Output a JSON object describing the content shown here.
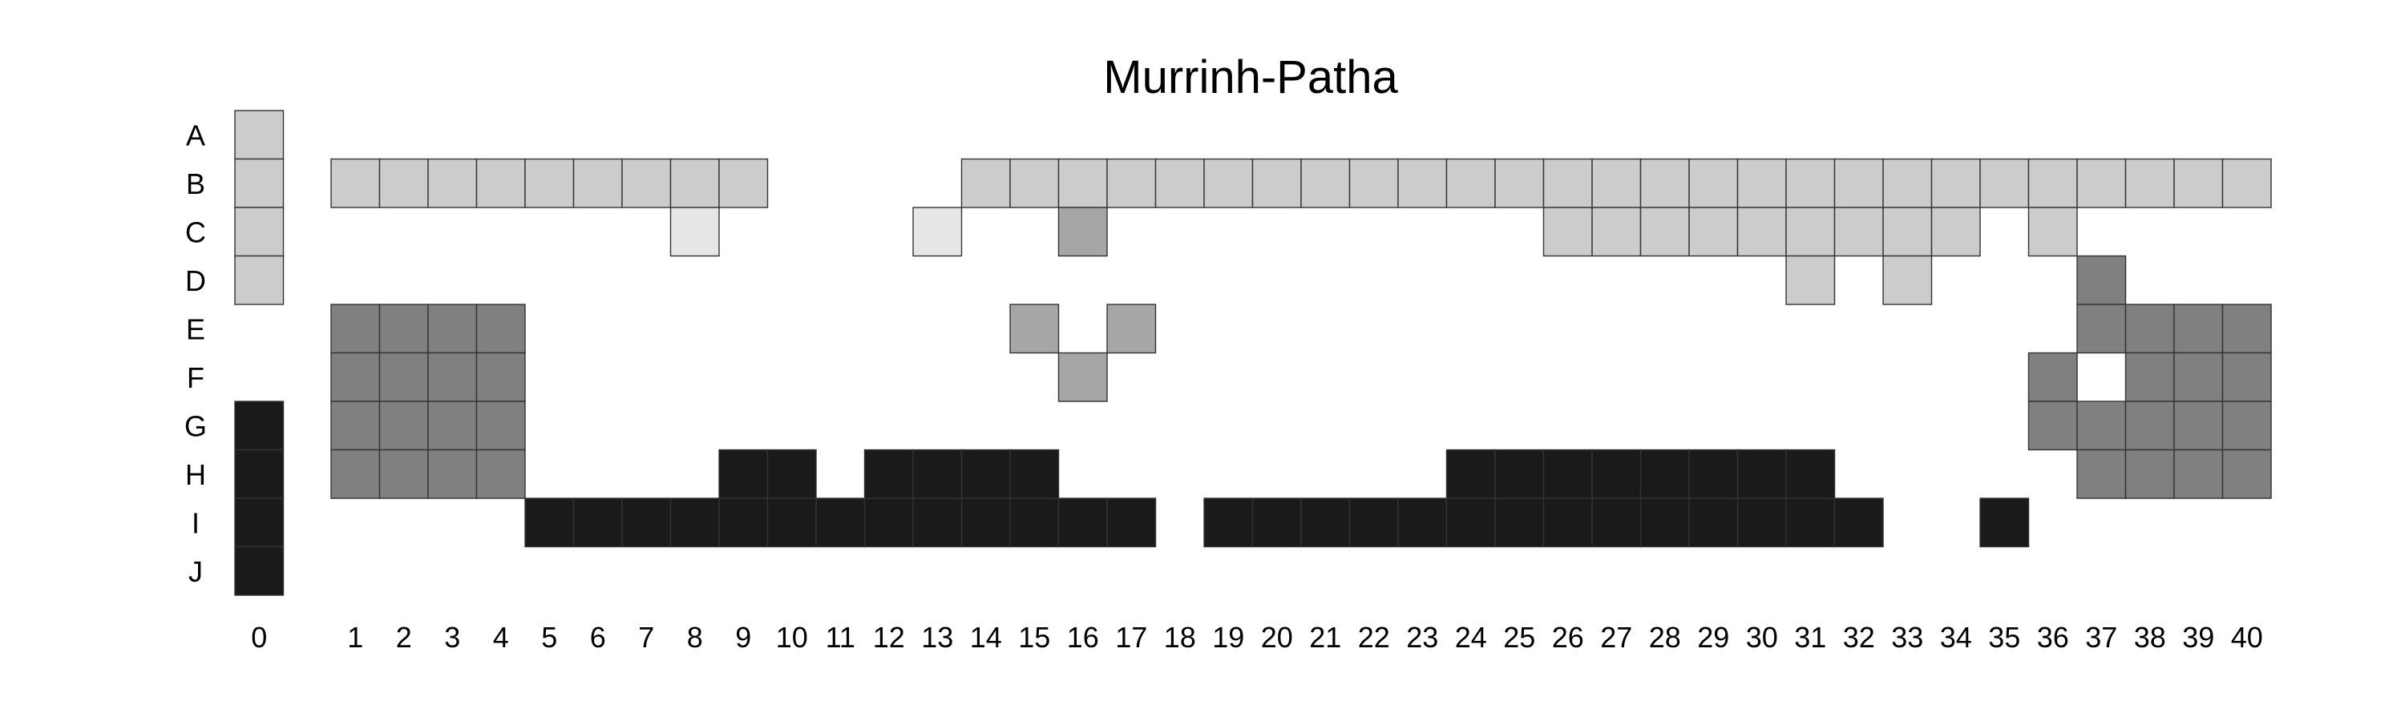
{
  "chart_data": {
    "type": "heatmap",
    "title": "Murrinh-Patha",
    "row_labels": [
      "A",
      "B",
      "C",
      "D",
      "E",
      "F",
      "G",
      "H",
      "I",
      "J"
    ],
    "column_labels": [
      "0",
      "1",
      "2",
      "3",
      "4",
      "5",
      "6",
      "7",
      "8",
      "9",
      "10",
      "11",
      "12",
      "13",
      "14",
      "15",
      "16",
      "17",
      "18",
      "19",
      "20",
      "21",
      "22",
      "23",
      "24",
      "25",
      "26",
      "27",
      "28",
      "29",
      "30",
      "31",
      "32",
      "33",
      "34",
      "35",
      "36",
      "37",
      "38",
      "39",
      "40"
    ],
    "shade_colors": {
      "very_light": "#e6e6e6",
      "light": "#cccccc",
      "medium": "#a6a6a6",
      "dark": "#808080",
      "black": "#1a1a1a"
    },
    "cells": [
      {
        "col": 0,
        "row": "A",
        "shade": "light"
      },
      {
        "col": 0,
        "row": "B",
        "shade": "light"
      },
      {
        "col": 0,
        "row": "C",
        "shade": "light"
      },
      {
        "col": 0,
        "row": "D",
        "shade": "light"
      },
      {
        "col": 0,
        "row": "G",
        "shade": "black"
      },
      {
        "col": 0,
        "row": "H",
        "shade": "black"
      },
      {
        "col": 0,
        "row": "I",
        "shade": "black"
      },
      {
        "col": 0,
        "row": "J",
        "shade": "black"
      },
      {
        "col": 1,
        "row": "B",
        "shade": "light"
      },
      {
        "col": 2,
        "row": "B",
        "shade": "light"
      },
      {
        "col": 3,
        "row": "B",
        "shade": "light"
      },
      {
        "col": 4,
        "row": "B",
        "shade": "light"
      },
      {
        "col": 5,
        "row": "B",
        "shade": "light"
      },
      {
        "col": 6,
        "row": "B",
        "shade": "light"
      },
      {
        "col": 7,
        "row": "B",
        "shade": "light"
      },
      {
        "col": 8,
        "row": "B",
        "shade": "light"
      },
      {
        "col": 9,
        "row": "B",
        "shade": "light"
      },
      {
        "col": 14,
        "row": "B",
        "shade": "light"
      },
      {
        "col": 15,
        "row": "B",
        "shade": "light"
      },
      {
        "col": 16,
        "row": "B",
        "shade": "light"
      },
      {
        "col": 17,
        "row": "B",
        "shade": "light"
      },
      {
        "col": 18,
        "row": "B",
        "shade": "light"
      },
      {
        "col": 19,
        "row": "B",
        "shade": "light"
      },
      {
        "col": 20,
        "row": "B",
        "shade": "light"
      },
      {
        "col": 21,
        "row": "B",
        "shade": "light"
      },
      {
        "col": 22,
        "row": "B",
        "shade": "light"
      },
      {
        "col": 23,
        "row": "B",
        "shade": "light"
      },
      {
        "col": 24,
        "row": "B",
        "shade": "light"
      },
      {
        "col": 25,
        "row": "B",
        "shade": "light"
      },
      {
        "col": 26,
        "row": "B",
        "shade": "light"
      },
      {
        "col": 27,
        "row": "B",
        "shade": "light"
      },
      {
        "col": 28,
        "row": "B",
        "shade": "light"
      },
      {
        "col": 29,
        "row": "B",
        "shade": "light"
      },
      {
        "col": 30,
        "row": "B",
        "shade": "light"
      },
      {
        "col": 31,
        "row": "B",
        "shade": "light"
      },
      {
        "col": 32,
        "row": "B",
        "shade": "light"
      },
      {
        "col": 33,
        "row": "B",
        "shade": "light"
      },
      {
        "col": 34,
        "row": "B",
        "shade": "light"
      },
      {
        "col": 35,
        "row": "B",
        "shade": "light"
      },
      {
        "col": 36,
        "row": "B",
        "shade": "light"
      },
      {
        "col": 37,
        "row": "B",
        "shade": "light"
      },
      {
        "col": 38,
        "row": "B",
        "shade": "light"
      },
      {
        "col": 39,
        "row": "B",
        "shade": "light"
      },
      {
        "col": 40,
        "row": "B",
        "shade": "light"
      },
      {
        "col": 8,
        "row": "C",
        "shade": "very_light"
      },
      {
        "col": 13,
        "row": "C",
        "shade": "very_light"
      },
      {
        "col": 16,
        "row": "C",
        "shade": "medium"
      },
      {
        "col": 26,
        "row": "C",
        "shade": "light"
      },
      {
        "col": 27,
        "row": "C",
        "shade": "light"
      },
      {
        "col": 28,
        "row": "C",
        "shade": "light"
      },
      {
        "col": 29,
        "row": "C",
        "shade": "light"
      },
      {
        "col": 30,
        "row": "C",
        "shade": "light"
      },
      {
        "col": 31,
        "row": "C",
        "shade": "light"
      },
      {
        "col": 32,
        "row": "C",
        "shade": "light"
      },
      {
        "col": 33,
        "row": "C",
        "shade": "light"
      },
      {
        "col": 34,
        "row": "C",
        "shade": "light"
      },
      {
        "col": 36,
        "row": "C",
        "shade": "light"
      },
      {
        "col": 31,
        "row": "D",
        "shade": "light"
      },
      {
        "col": 33,
        "row": "D",
        "shade": "light"
      },
      {
        "col": 37,
        "row": "D",
        "shade": "dark"
      },
      {
        "col": 1,
        "row": "E",
        "shade": "dark"
      },
      {
        "col": 2,
        "row": "E",
        "shade": "dark"
      },
      {
        "col": 3,
        "row": "E",
        "shade": "dark"
      },
      {
        "col": 4,
        "row": "E",
        "shade": "dark"
      },
      {
        "col": 15,
        "row": "E",
        "shade": "medium"
      },
      {
        "col": 17,
        "row": "E",
        "shade": "medium"
      },
      {
        "col": 37,
        "row": "E",
        "shade": "dark"
      },
      {
        "col": 38,
        "row": "E",
        "shade": "dark"
      },
      {
        "col": 39,
        "row": "E",
        "shade": "dark"
      },
      {
        "col": 40,
        "row": "E",
        "shade": "dark"
      },
      {
        "col": 1,
        "row": "F",
        "shade": "dark"
      },
      {
        "col": 2,
        "row": "F",
        "shade": "dark"
      },
      {
        "col": 3,
        "row": "F",
        "shade": "dark"
      },
      {
        "col": 4,
        "row": "F",
        "shade": "dark"
      },
      {
        "col": 16,
        "row": "F",
        "shade": "medium"
      },
      {
        "col": 36,
        "row": "F",
        "shade": "dark"
      },
      {
        "col": 38,
        "row": "F",
        "shade": "dark"
      },
      {
        "col": 39,
        "row": "F",
        "shade": "dark"
      },
      {
        "col": 40,
        "row": "F",
        "shade": "dark"
      },
      {
        "col": 1,
        "row": "G",
        "shade": "dark"
      },
      {
        "col": 2,
        "row": "G",
        "shade": "dark"
      },
      {
        "col": 3,
        "row": "G",
        "shade": "dark"
      },
      {
        "col": 4,
        "row": "G",
        "shade": "dark"
      },
      {
        "col": 36,
        "row": "G",
        "shade": "dark"
      },
      {
        "col": 37,
        "row": "G",
        "shade": "dark"
      },
      {
        "col": 38,
        "row": "G",
        "shade": "dark"
      },
      {
        "col": 39,
        "row": "G",
        "shade": "dark"
      },
      {
        "col": 40,
        "row": "G",
        "shade": "dark"
      },
      {
        "col": 1,
        "row": "H",
        "shade": "dark"
      },
      {
        "col": 2,
        "row": "H",
        "shade": "dark"
      },
      {
        "col": 3,
        "row": "H",
        "shade": "dark"
      },
      {
        "col": 4,
        "row": "H",
        "shade": "dark"
      },
      {
        "col": 9,
        "row": "H",
        "shade": "black"
      },
      {
        "col": 10,
        "row": "H",
        "shade": "black"
      },
      {
        "col": 12,
        "row": "H",
        "shade": "black"
      },
      {
        "col": 13,
        "row": "H",
        "shade": "black"
      },
      {
        "col": 14,
        "row": "H",
        "shade": "black"
      },
      {
        "col": 15,
        "row": "H",
        "shade": "black"
      },
      {
        "col": 24,
        "row": "H",
        "shade": "black"
      },
      {
        "col": 25,
        "row": "H",
        "shade": "black"
      },
      {
        "col": 26,
        "row": "H",
        "shade": "black"
      },
      {
        "col": 27,
        "row": "H",
        "shade": "black"
      },
      {
        "col": 28,
        "row": "H",
        "shade": "black"
      },
      {
        "col": 29,
        "row": "H",
        "shade": "black"
      },
      {
        "col": 30,
        "row": "H",
        "shade": "black"
      },
      {
        "col": 31,
        "row": "H",
        "shade": "black"
      },
      {
        "col": 37,
        "row": "H",
        "shade": "dark"
      },
      {
        "col": 38,
        "row": "H",
        "shade": "dark"
      },
      {
        "col": 39,
        "row": "H",
        "shade": "dark"
      },
      {
        "col": 40,
        "row": "H",
        "shade": "dark"
      },
      {
        "col": 5,
        "row": "I",
        "shade": "black"
      },
      {
        "col": 6,
        "row": "I",
        "shade": "black"
      },
      {
        "col": 7,
        "row": "I",
        "shade": "black"
      },
      {
        "col": 8,
        "row": "I",
        "shade": "black"
      },
      {
        "col": 9,
        "row": "I",
        "shade": "black"
      },
      {
        "col": 10,
        "row": "I",
        "shade": "black"
      },
      {
        "col": 11,
        "row": "I",
        "shade": "black"
      },
      {
        "col": 12,
        "row": "I",
        "shade": "black"
      },
      {
        "col": 13,
        "row": "I",
        "shade": "black"
      },
      {
        "col": 14,
        "row": "I",
        "shade": "black"
      },
      {
        "col": 15,
        "row": "I",
        "shade": "black"
      },
      {
        "col": 16,
        "row": "I",
        "shade": "black"
      },
      {
        "col": 17,
        "row": "I",
        "shade": "black"
      },
      {
        "col": 19,
        "row": "I",
        "shade": "black"
      },
      {
        "col": 20,
        "row": "I",
        "shade": "black"
      },
      {
        "col": 21,
        "row": "I",
        "shade": "black"
      },
      {
        "col": 22,
        "row": "I",
        "shade": "black"
      },
      {
        "col": 23,
        "row": "I",
        "shade": "black"
      },
      {
        "col": 24,
        "row": "I",
        "shade": "black"
      },
      {
        "col": 25,
        "row": "I",
        "shade": "black"
      },
      {
        "col": 26,
        "row": "I",
        "shade": "black"
      },
      {
        "col": 27,
        "row": "I",
        "shade": "black"
      },
      {
        "col": 28,
        "row": "I",
        "shade": "black"
      },
      {
        "col": 29,
        "row": "I",
        "shade": "black"
      },
      {
        "col": 30,
        "row": "I",
        "shade": "black"
      },
      {
        "col": 31,
        "row": "I",
        "shade": "black"
      },
      {
        "col": 32,
        "row": "I",
        "shade": "black"
      },
      {
        "col": 35,
        "row": "I",
        "shade": "black"
      }
    ]
  }
}
